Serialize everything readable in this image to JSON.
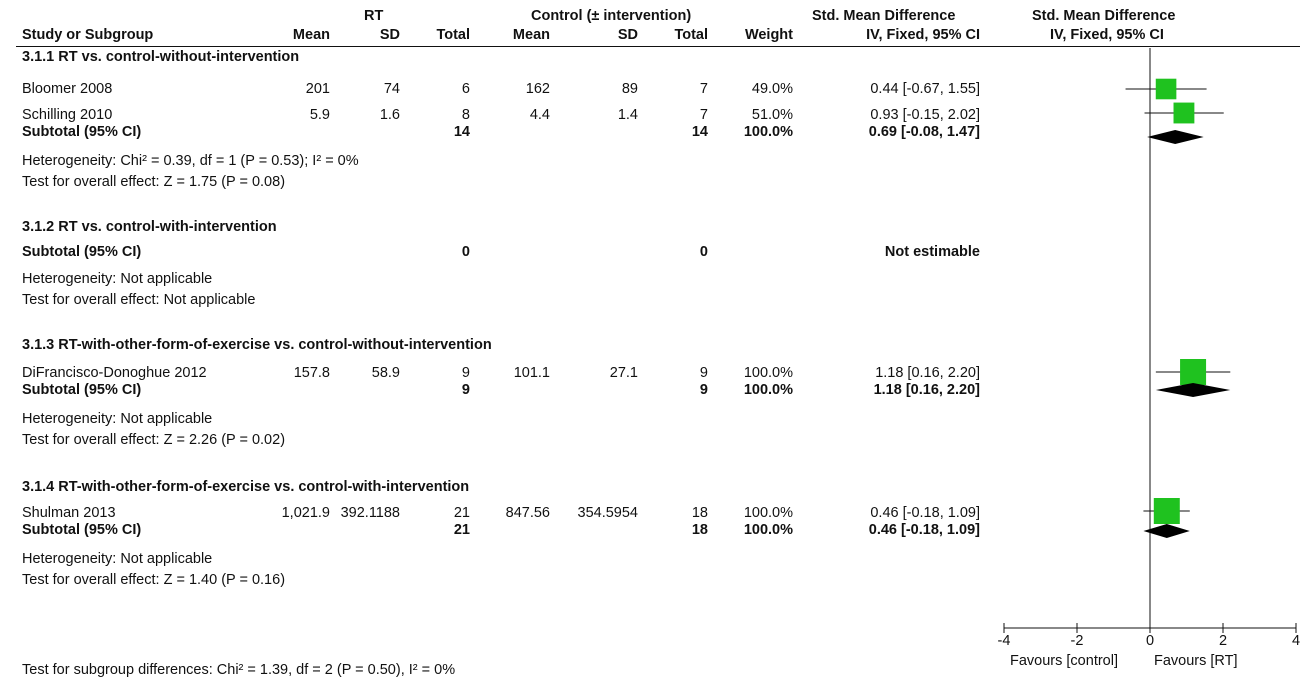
{
  "header": {
    "rt_group": "RT",
    "control_group": "Control (± intervention)",
    "smd_title": "Std. Mean Difference",
    "smd_title_plot": "Std. Mean Difference",
    "col_study": "Study or Subgroup",
    "col_rt_mean": "Mean",
    "col_rt_sd": "SD",
    "col_rt_total": "Total",
    "col_c_mean": "Mean",
    "col_c_sd": "SD",
    "col_c_total": "Total",
    "col_weight": "Weight",
    "col_ci": "IV, Fixed, 95% CI",
    "col_ci_plot": "IV, Fixed, 95% CI"
  },
  "groups": [
    {
      "title": "3.1.1 RT vs. control-without-intervention",
      "studies": [
        {
          "name": "Bloomer 2008",
          "rt_mean": "201",
          "rt_sd": "74",
          "rt_total": "6",
          "c_mean": "162",
          "c_sd": "89",
          "c_total": "7",
          "weight": "49.0%",
          "ci": "0.44 [-0.67, 1.55]"
        },
        {
          "name": "Schilling 2010",
          "rt_mean": "5.9",
          "rt_sd": "1.6",
          "rt_total": "8",
          "c_mean": "4.4",
          "c_sd": "1.4",
          "c_total": "7",
          "weight": "51.0%",
          "ci": "0.93 [-0.15, 2.02]"
        }
      ],
      "subtotal": {
        "label": "Subtotal (95% CI)",
        "rt_total": "14",
        "c_total": "14",
        "weight": "100.0%",
        "ci": "0.69 [-0.08, 1.47]"
      },
      "heterogeneity": "Heterogeneity: Chi² = 0.39, df = 1 (P = 0.53); I² = 0%",
      "overall": "Test for overall effect: Z = 1.75 (P = 0.08)"
    },
    {
      "title": "3.1.2 RT vs. control-with-intervention",
      "studies": [],
      "subtotal": {
        "label": "Subtotal (95% CI)",
        "rt_total": "0",
        "c_total": "0",
        "weight": "",
        "ci": "Not estimable"
      },
      "heterogeneity": "Heterogeneity: Not applicable",
      "overall": "Test for overall effect: Not applicable"
    },
    {
      "title": "3.1.3 RT-with-other-form-of-exercise vs. control-without-intervention",
      "studies": [
        {
          "name": "DiFrancisco-Donoghue 2012",
          "rt_mean": "157.8",
          "rt_sd": "58.9",
          "rt_total": "9",
          "c_mean": "101.1",
          "c_sd": "27.1",
          "c_total": "9",
          "weight": "100.0%",
          "ci": "1.18 [0.16, 2.20]"
        }
      ],
      "subtotal": {
        "label": "Subtotal (95% CI)",
        "rt_total": "9",
        "c_total": "9",
        "weight": "100.0%",
        "ci": "1.18 [0.16, 2.20]"
      },
      "heterogeneity": "Heterogeneity: Not applicable",
      "overall": "Test for overall effect: Z = 2.26 (P = 0.02)"
    },
    {
      "title": "3.1.4 RT-with-other-form-of-exercise vs. control-with-intervention",
      "studies": [
        {
          "name": "Shulman 2013",
          "rt_mean": "1,021.9",
          "rt_sd": "392.1188",
          "rt_total": "21",
          "c_mean": "847.56",
          "c_sd": "354.5954",
          "c_total": "18",
          "weight": "100.0%",
          "ci": "0.46 [-0.18, 1.09]"
        }
      ],
      "subtotal": {
        "label": "Subtotal (95% CI)",
        "rt_total": "21",
        "c_total": "18",
        "weight": "100.0%",
        "ci": "0.46 [-0.18, 1.09]"
      },
      "heterogeneity": "Heterogeneity: Not applicable",
      "overall": "Test for overall effect: Z = 1.40 (P = 0.16)"
    }
  ],
  "subgroup_test": "Test for subgroup differences: Chi² = 1.39, df = 2 (P = 0.50), I² = 0%",
  "axis": {
    "favours_left": "Favours [control]",
    "favours_right": "Favours [RT]"
  },
  "colors": {
    "marker": "#1fc21f",
    "diamond": "#000000"
  },
  "chart_data": {
    "type": "forest",
    "x_range": [
      -4,
      4
    ],
    "ticks": [
      -4,
      -2,
      0,
      2,
      4
    ],
    "studies": [
      {
        "name": "Bloomer 2008",
        "smd": 0.44,
        "lower": -0.67,
        "upper": 1.55,
        "weight": 49.0
      },
      {
        "name": "Schilling 2010",
        "smd": 0.93,
        "lower": -0.15,
        "upper": 2.02,
        "weight": 51.0
      },
      {
        "name": "DiFrancisco-Donoghue 2012",
        "smd": 1.18,
        "lower": 0.16,
        "upper": 2.2,
        "weight": 100.0
      },
      {
        "name": "Shulman 2013",
        "smd": 0.46,
        "lower": -0.18,
        "upper": 1.09,
        "weight": 100.0
      }
    ],
    "subtotals": [
      {
        "group": "3.1.1",
        "smd": 0.69,
        "lower": -0.08,
        "upper": 1.47
      },
      {
        "group": "3.1.3",
        "smd": 1.18,
        "lower": 0.16,
        "upper": 2.2
      },
      {
        "group": "3.1.4",
        "smd": 0.46,
        "lower": -0.18,
        "upper": 1.09
      }
    ]
  }
}
